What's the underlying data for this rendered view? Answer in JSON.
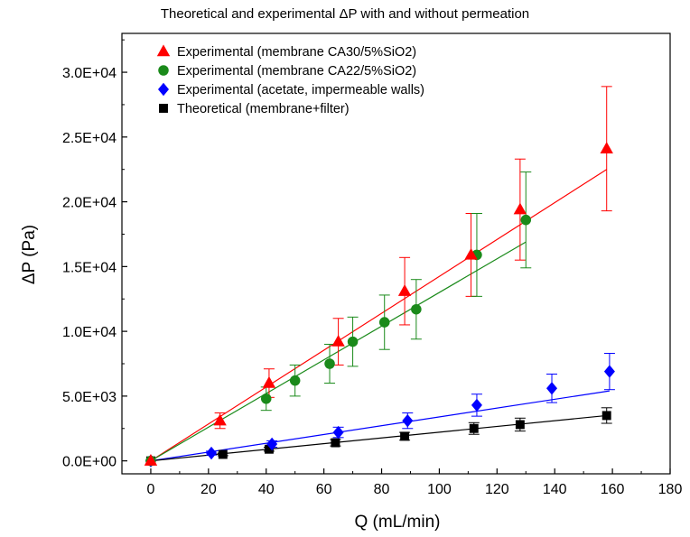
{
  "chart_data": {
    "type": "scatter",
    "title": "Theoretical and experimental ΔP with and without permeation",
    "xlabel": "Q (mL/min)",
    "ylabel": "ΔP (Pa)",
    "xlim": [
      -10,
      180
    ],
    "ylim": [
      -1000,
      33000
    ],
    "xticks": [
      0,
      20,
      40,
      60,
      80,
      100,
      120,
      140,
      160,
      180
    ],
    "xtick_labels": [
      "0",
      "20",
      "40",
      "60",
      "80",
      "100",
      "120",
      "140",
      "160",
      "180"
    ],
    "yticks": [
      0,
      5000,
      10000,
      15000,
      20000,
      25000,
      30000
    ],
    "ytick_labels": [
      "0.0E+00",
      "5.0E+03",
      "1.0E+04",
      "1.5E+04",
      "2.0E+04",
      "2.5E+04",
      "3.0E+04"
    ],
    "grid": false,
    "legend_position": "top-left",
    "series": [
      {
        "name": "Experimental (membrane CA30/5%SiO2)",
        "color": "#ff0000",
        "marker": "triangle",
        "x": [
          0,
          24,
          41,
          65,
          88,
          111,
          128,
          158
        ],
        "y": [
          0,
          3100,
          6000,
          9200,
          13100,
          15900,
          19400,
          24100
        ],
        "err": [
          0,
          600,
          1100,
          1800,
          2600,
          3200,
          3900,
          4800
        ],
        "fit": {
          "x": [
            0,
            158
          ],
          "y": [
            0,
            22500
          ]
        }
      },
      {
        "name": "Experimental (membrane CA22/5%SiO2)",
        "color": "#1a8a1a",
        "marker": "circle",
        "x": [
          0,
          40,
          50,
          62,
          70,
          81,
          92,
          113,
          130
        ],
        "y": [
          0,
          4800,
          6200,
          7500,
          9200,
          10700,
          11700,
          15900,
          18600
        ],
        "err": [
          0,
          900,
          1200,
          1500,
          1900,
          2100,
          2300,
          3200,
          3700
        ],
        "fit": {
          "x": [
            0,
            130
          ],
          "y": [
            0,
            16900
          ]
        }
      },
      {
        "name": "Experimental (acetate, impermeable walls)",
        "color": "#0000ff",
        "marker": "diamond",
        "x": [
          0,
          21,
          42,
          65,
          89,
          113,
          139,
          159
        ],
        "y": [
          0,
          600,
          1300,
          2200,
          3100,
          4300,
          5600,
          6900
        ],
        "err": [
          0,
          150,
          250,
          400,
          600,
          850,
          1100,
          1400
        ],
        "fit": {
          "x": [
            0,
            159
          ],
          "y": [
            0,
            5400
          ]
        }
      },
      {
        "name": "Theoretical (membrane+filter)",
        "color": "#000000",
        "marker": "square",
        "x": [
          0,
          25,
          41,
          64,
          88,
          112,
          128,
          158
        ],
        "y": [
          0,
          500,
          900,
          1400,
          1900,
          2500,
          2800,
          3500
        ],
        "err": [
          0,
          100,
          150,
          250,
          300,
          450,
          500,
          600
        ],
        "fit": {
          "x": [
            0,
            158
          ],
          "y": [
            0,
            3500
          ]
        }
      }
    ]
  }
}
